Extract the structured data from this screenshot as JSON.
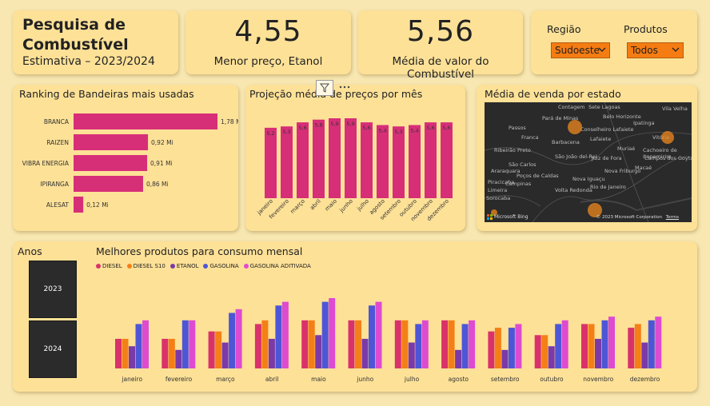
{
  "header": {
    "title_line1": "Pesquisa de",
    "title_line2": "Combustível",
    "subtitle": "Estimativa – 2023/2024"
  },
  "kpi1": {
    "value": "4,55",
    "label": "Menor preço, Etanol"
  },
  "kpi2": {
    "value": "5,56",
    "label": "Média de valor do Combustível"
  },
  "filters": {
    "regiao": {
      "label": "Região",
      "selected": "Sudoeste"
    },
    "produtos": {
      "label": "Produtos",
      "selected": "Todos"
    }
  },
  "colors": {
    "bar_pink": "#d72e78",
    "diesel": "#d9326a",
    "diesel_s10": "#f47f17",
    "etanol": "#7b3aa8",
    "gasolina": "#4d56d6",
    "gasolina_aditivada": "#de4bd1",
    "panel": "#fde197",
    "map_bg": "#2a2a2a",
    "map_bubble": "#ef8a1e"
  },
  "ranking": {
    "title": "Ranking de Bandeiras mais usadas",
    "chart_data": {
      "type": "bar",
      "orientation": "horizontal",
      "categories": [
        "BRANCA",
        "RAIZEN",
        "VIBRA ENERGIA",
        "IPIRANGA",
        "ALESAT"
      ],
      "values": [
        1.78,
        0.92,
        0.91,
        0.86,
        0.12
      ],
      "value_labels": [
        "1,78 Mi",
        "0,92 Mi",
        "0,91 Mi",
        "0,86 Mi",
        "0,12 Mi"
      ],
      "xlim": [
        0,
        1.78
      ]
    }
  },
  "projecao": {
    "title": "Projeção média de preços por mês",
    "chart_data": {
      "type": "bar",
      "categories": [
        "janeiro",
        "fevereiro",
        "março",
        "abril",
        "maio",
        "junho",
        "julho",
        "agosto",
        "setembro",
        "outubro",
        "novembro",
        "dezembro"
      ],
      "values": [
        5.2,
        5.3,
        5.6,
        5.8,
        5.9,
        5.9,
        5.6,
        5.4,
        5.3,
        5.4,
        5.6,
        5.6
      ],
      "value_labels": [
        "5,2",
        "5,3",
        "5,6",
        "5,8",
        "5,9",
        "5,9",
        "5,6",
        "5,4",
        "5,3",
        "5,4",
        "5,6",
        "5,6"
      ],
      "ylim": [
        0,
        5.9
      ]
    }
  },
  "mapa": {
    "title": "Média de venda por estado",
    "cities": [
      "Contagem",
      "Belo Horizonte",
      "Pará de Minas",
      "Sete Lagoas",
      "Passos",
      "Conselheiro Lafaiete",
      "Barbacena",
      "Ipatinga",
      "Vitória",
      "Vila Velha",
      "Cachoeiro de Itapemirim",
      "Ribeirão Preto",
      "Franca",
      "São Carlos",
      "Campinas",
      "Sorocaba",
      "Juiz de Fora",
      "Nova Friburgo",
      "Macaé",
      "Campos dos Goytacazes",
      "Volta Redonda",
      "Nova Iguaçu",
      "Rio de Janeiro",
      "Araraquara",
      "Lafaiete",
      "Muriaé",
      "São João del-Rei",
      "Poços de Caldas",
      "Limeira",
      "Piracicaba"
    ],
    "bubbles": [
      "Minas Gerais",
      "Espírito Santo",
      "Rio de Janeiro",
      "São Paulo"
    ],
    "provider": "Microsoft Bing",
    "copyright": "© 2023 Microsoft Corporation",
    "terms": "Terms"
  },
  "anos": {
    "title": "Anos",
    "options": [
      "2023",
      "2024"
    ]
  },
  "consumo": {
    "title": "Melhores produtos para consumo mensal",
    "chart_data": {
      "type": "bar",
      "categories": [
        "janeiro",
        "fevereiro",
        "março",
        "abril",
        "maio",
        "junho",
        "julho",
        "agosto",
        "setembro",
        "outubro",
        "novembro",
        "dezembro"
      ],
      "ylim": [
        0,
        6.5
      ],
      "series": [
        {
          "name": "DIESEL",
          "values": [
            5.4,
            5.4,
            5.6,
            5.8,
            5.9,
            5.9,
            5.9,
            5.9,
            5.6,
            5.5,
            5.8,
            5.7
          ]
        },
        {
          "name": "DIESEL S10",
          "values": [
            5.4,
            5.4,
            5.6,
            5.9,
            5.9,
            5.9,
            5.9,
            5.9,
            5.7,
            5.5,
            5.8,
            5.8
          ]
        },
        {
          "name": "ETANOL",
          "values": [
            5.2,
            5.1,
            5.3,
            5.4,
            5.5,
            5.4,
            5.3,
            5.1,
            5.1,
            5.2,
            5.4,
            5.3
          ]
        },
        {
          "name": "GASOLINA",
          "values": [
            5.8,
            5.9,
            6.1,
            6.3,
            6.4,
            6.3,
            5.8,
            5.8,
            5.7,
            5.8,
            5.9,
            5.9
          ]
        },
        {
          "name": "GASOLINA ADITIVADA",
          "values": [
            5.9,
            5.9,
            6.2,
            6.4,
            6.5,
            6.4,
            5.9,
            5.9,
            5.8,
            5.9,
            6.0,
            6.0
          ]
        }
      ]
    }
  }
}
